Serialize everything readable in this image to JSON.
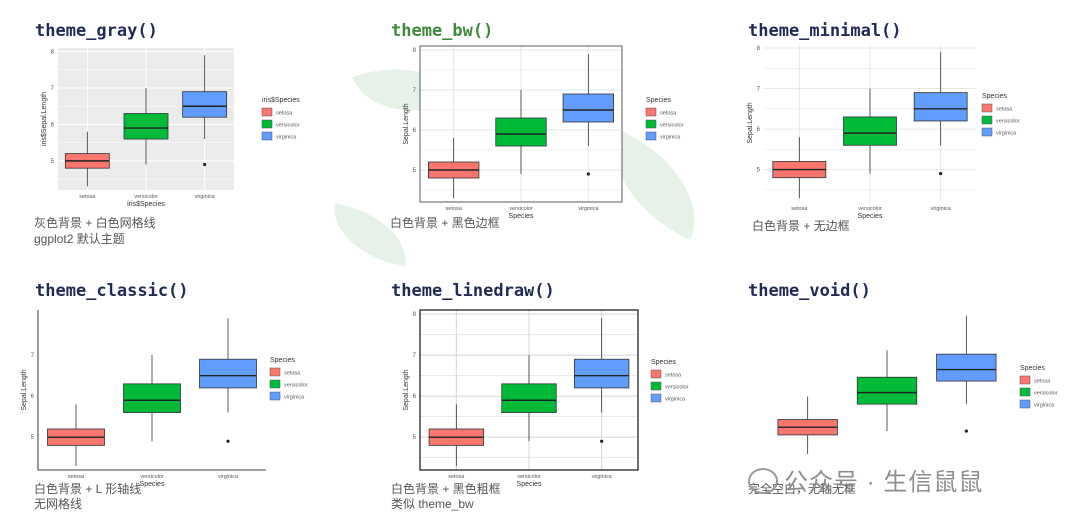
{
  "panels": [
    {
      "title": "theme_gray()",
      "theme": "gray",
      "captions": [
        "灰色背景 + 白色网格线",
        "ggplot2 默认主题"
      ],
      "chart_data": {
        "type": "box",
        "xlabel": "iris$Species",
        "ylabel": "iris$Sepal.Length",
        "categories": [
          "setosa",
          "versicolor",
          "virginica"
        ],
        "yticks": [
          5,
          6,
          7,
          8
        ],
        "ylim": [
          4.2,
          8.1
        ],
        "legend_title": "iris$Species",
        "legend_placement": "right",
        "grid": true,
        "boxes": [
          {
            "name": "setosa",
            "min": 4.3,
            "q1": 4.8,
            "median": 5.0,
            "q3": 5.2,
            "max": 5.8,
            "outliers": [],
            "color": "#f8766d"
          },
          {
            "name": "versicolor",
            "min": 4.9,
            "q1": 5.6,
            "median": 5.9,
            "q3": 6.3,
            "max": 7.0,
            "outliers": [],
            "color": "#00ba38"
          },
          {
            "name": "virginica",
            "min": 5.6,
            "q1": 6.2,
            "median": 6.5,
            "q3": 6.9,
            "max": 7.9,
            "outliers": [
              4.9
            ],
            "color": "#619cff"
          }
        ]
      }
    },
    {
      "title": "theme_bw()",
      "theme": "bw",
      "captions": [
        "白色背景 + 黑色边框"
      ],
      "chart_data": {
        "type": "box",
        "xlabel": "Species",
        "ylabel": "Sepal.Length",
        "categories": [
          "setosa",
          "versicolor",
          "virginica"
        ],
        "yticks": [
          5,
          6,
          7,
          8
        ],
        "ylim": [
          4.2,
          8.1
        ],
        "legend_title": "Species",
        "legend_placement": "right",
        "grid": true,
        "boxes": [
          {
            "name": "setosa",
            "min": 4.3,
            "q1": 4.8,
            "median": 5.0,
            "q3": 5.2,
            "max": 5.8,
            "outliers": [],
            "color": "#f8766d"
          },
          {
            "name": "versicolor",
            "min": 4.9,
            "q1": 5.6,
            "median": 5.9,
            "q3": 6.3,
            "max": 7.0,
            "outliers": [],
            "color": "#00ba38"
          },
          {
            "name": "virginica",
            "min": 5.6,
            "q1": 6.2,
            "median": 6.5,
            "q3": 6.9,
            "max": 7.9,
            "outliers": [
              4.9
            ],
            "color": "#619cff"
          }
        ]
      }
    },
    {
      "title": "theme_minimal()",
      "theme": "minimal",
      "captions": [
        "白色背景 + 无边框"
      ],
      "chart_data": {
        "type": "box",
        "xlabel": "Species",
        "ylabel": "Sepal.Length",
        "categories": [
          "setosa",
          "versicolor",
          "virginica"
        ],
        "yticks": [
          5,
          6,
          7,
          8
        ],
        "ylim": [
          4.2,
          8.1
        ],
        "legend_title": "Species",
        "legend_placement": "right",
        "grid": true,
        "boxes": [
          {
            "name": "setosa",
            "min": 4.3,
            "q1": 4.8,
            "median": 5.0,
            "q3": 5.2,
            "max": 5.8,
            "outliers": [],
            "color": "#f8766d"
          },
          {
            "name": "versicolor",
            "min": 4.9,
            "q1": 5.6,
            "median": 5.9,
            "q3": 6.3,
            "max": 7.0,
            "outliers": [],
            "color": "#00ba38"
          },
          {
            "name": "virginica",
            "min": 5.6,
            "q1": 6.2,
            "median": 6.5,
            "q3": 6.9,
            "max": 7.9,
            "outliers": [
              4.9
            ],
            "color": "#619cff"
          }
        ]
      }
    },
    {
      "title": "theme_classic()",
      "theme": "classic",
      "captions": [
        "白色背景 + L 形轴线",
        "无网格线"
      ],
      "chart_data": {
        "type": "box",
        "xlabel": "Species",
        "ylabel": "Sepal.Length",
        "categories": [
          "setosa",
          "versicolor",
          "virginica"
        ],
        "yticks": [
          5,
          6,
          7
        ],
        "ylim": [
          4.2,
          8.1
        ],
        "legend_title": "Species",
        "legend_placement": "right",
        "grid": false,
        "boxes": [
          {
            "name": "setosa",
            "min": 4.3,
            "q1": 4.8,
            "median": 5.0,
            "q3": 5.2,
            "max": 5.8,
            "outliers": [],
            "color": "#f8766d"
          },
          {
            "name": "versicolor",
            "min": 4.9,
            "q1": 5.6,
            "median": 5.9,
            "q3": 6.3,
            "max": 7.0,
            "outliers": [],
            "color": "#00ba38"
          },
          {
            "name": "virginica",
            "min": 5.6,
            "q1": 6.2,
            "median": 6.5,
            "q3": 6.9,
            "max": 7.9,
            "outliers": [
              4.9
            ],
            "color": "#619cff"
          }
        ]
      }
    },
    {
      "title": "theme_linedraw()",
      "theme": "linedraw",
      "captions": [
        "白色背景 + 黑色粗框",
        "类似 theme_bw"
      ],
      "chart_data": {
        "type": "box",
        "xlabel": "Species",
        "ylabel": "Sepal.Length",
        "categories": [
          "setosa",
          "versicolor",
          "virginica"
        ],
        "yticks": [
          5,
          6,
          7,
          8
        ],
        "ylim": [
          4.2,
          8.1
        ],
        "legend_title": "Species",
        "legend_placement": "right",
        "grid": true,
        "boxes": [
          {
            "name": "setosa",
            "min": 4.3,
            "q1": 4.8,
            "median": 5.0,
            "q3": 5.2,
            "max": 5.8,
            "outliers": [],
            "color": "#f8766d"
          },
          {
            "name": "versicolor",
            "min": 4.9,
            "q1": 5.6,
            "median": 5.9,
            "q3": 6.3,
            "max": 7.0,
            "outliers": [],
            "color": "#00ba38"
          },
          {
            "name": "virginica",
            "min": 5.6,
            "q1": 6.2,
            "median": 6.5,
            "q3": 6.9,
            "max": 7.9,
            "outliers": [
              4.9
            ],
            "color": "#619cff"
          }
        ]
      }
    },
    {
      "title": "theme_void()",
      "theme": "void",
      "captions": [
        "完全空白，无轴无框"
      ],
      "chart_data": {
        "type": "box",
        "xlabel": "",
        "ylabel": "",
        "categories": [
          "setosa",
          "versicolor",
          "virginica"
        ],
        "yticks": [],
        "ylim": [
          4.2,
          8.1
        ],
        "legend_title": "Species",
        "legend_placement": "right",
        "grid": false,
        "boxes": [
          {
            "name": "setosa",
            "min": 4.3,
            "q1": 4.8,
            "median": 5.0,
            "q3": 5.2,
            "max": 5.8,
            "outliers": [],
            "color": "#f8766d"
          },
          {
            "name": "versicolor",
            "min": 4.9,
            "q1": 5.6,
            "median": 5.9,
            "q3": 6.3,
            "max": 7.0,
            "outliers": [],
            "color": "#00ba38"
          },
          {
            "name": "virginica",
            "min": 5.6,
            "q1": 6.2,
            "median": 6.5,
            "q3": 6.9,
            "max": 7.9,
            "outliers": [
              4.9
            ],
            "color": "#619cff"
          }
        ]
      }
    }
  ],
  "watermark": "公众号 · 生信鼠鼠"
}
